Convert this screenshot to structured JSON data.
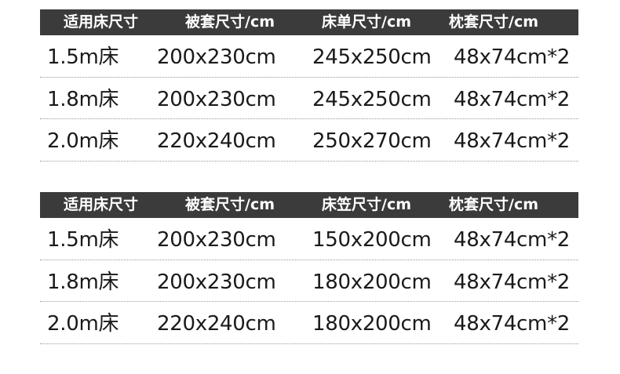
{
  "tables": [
    {
      "headers": [
        "适用床尺寸",
        "被套尺寸/cm",
        "床单尺寸/cm",
        "枕套尺寸/cm"
      ],
      "rows": [
        [
          "1.5m床",
          "200x230cm",
          "245x250cm",
          "48x74cm*2"
        ],
        [
          "1.8m床",
          "200x230cm",
          "245x250cm",
          "48x74cm*2"
        ],
        [
          "2.0m床",
          "220x240cm",
          "250x270cm",
          "48x74cm*2"
        ]
      ]
    },
    {
      "headers": [
        "适用床尺寸",
        "被套尺寸/cm",
        "床笠尺寸/cm",
        "枕套尺寸/cm"
      ],
      "rows": [
        [
          "1.5m床",
          "200x230cm",
          "150x200cm",
          "48x74cm*2"
        ],
        [
          "1.8m床",
          "200x230cm",
          "180x200cm",
          "48x74cm*2"
        ],
        [
          "2.0m床",
          "220x240cm",
          "180x200cm",
          "48x74cm*2"
        ]
      ]
    }
  ],
  "colors": {
    "header_bg": "#3b3b3b",
    "header_text": "#ffffff"
  }
}
